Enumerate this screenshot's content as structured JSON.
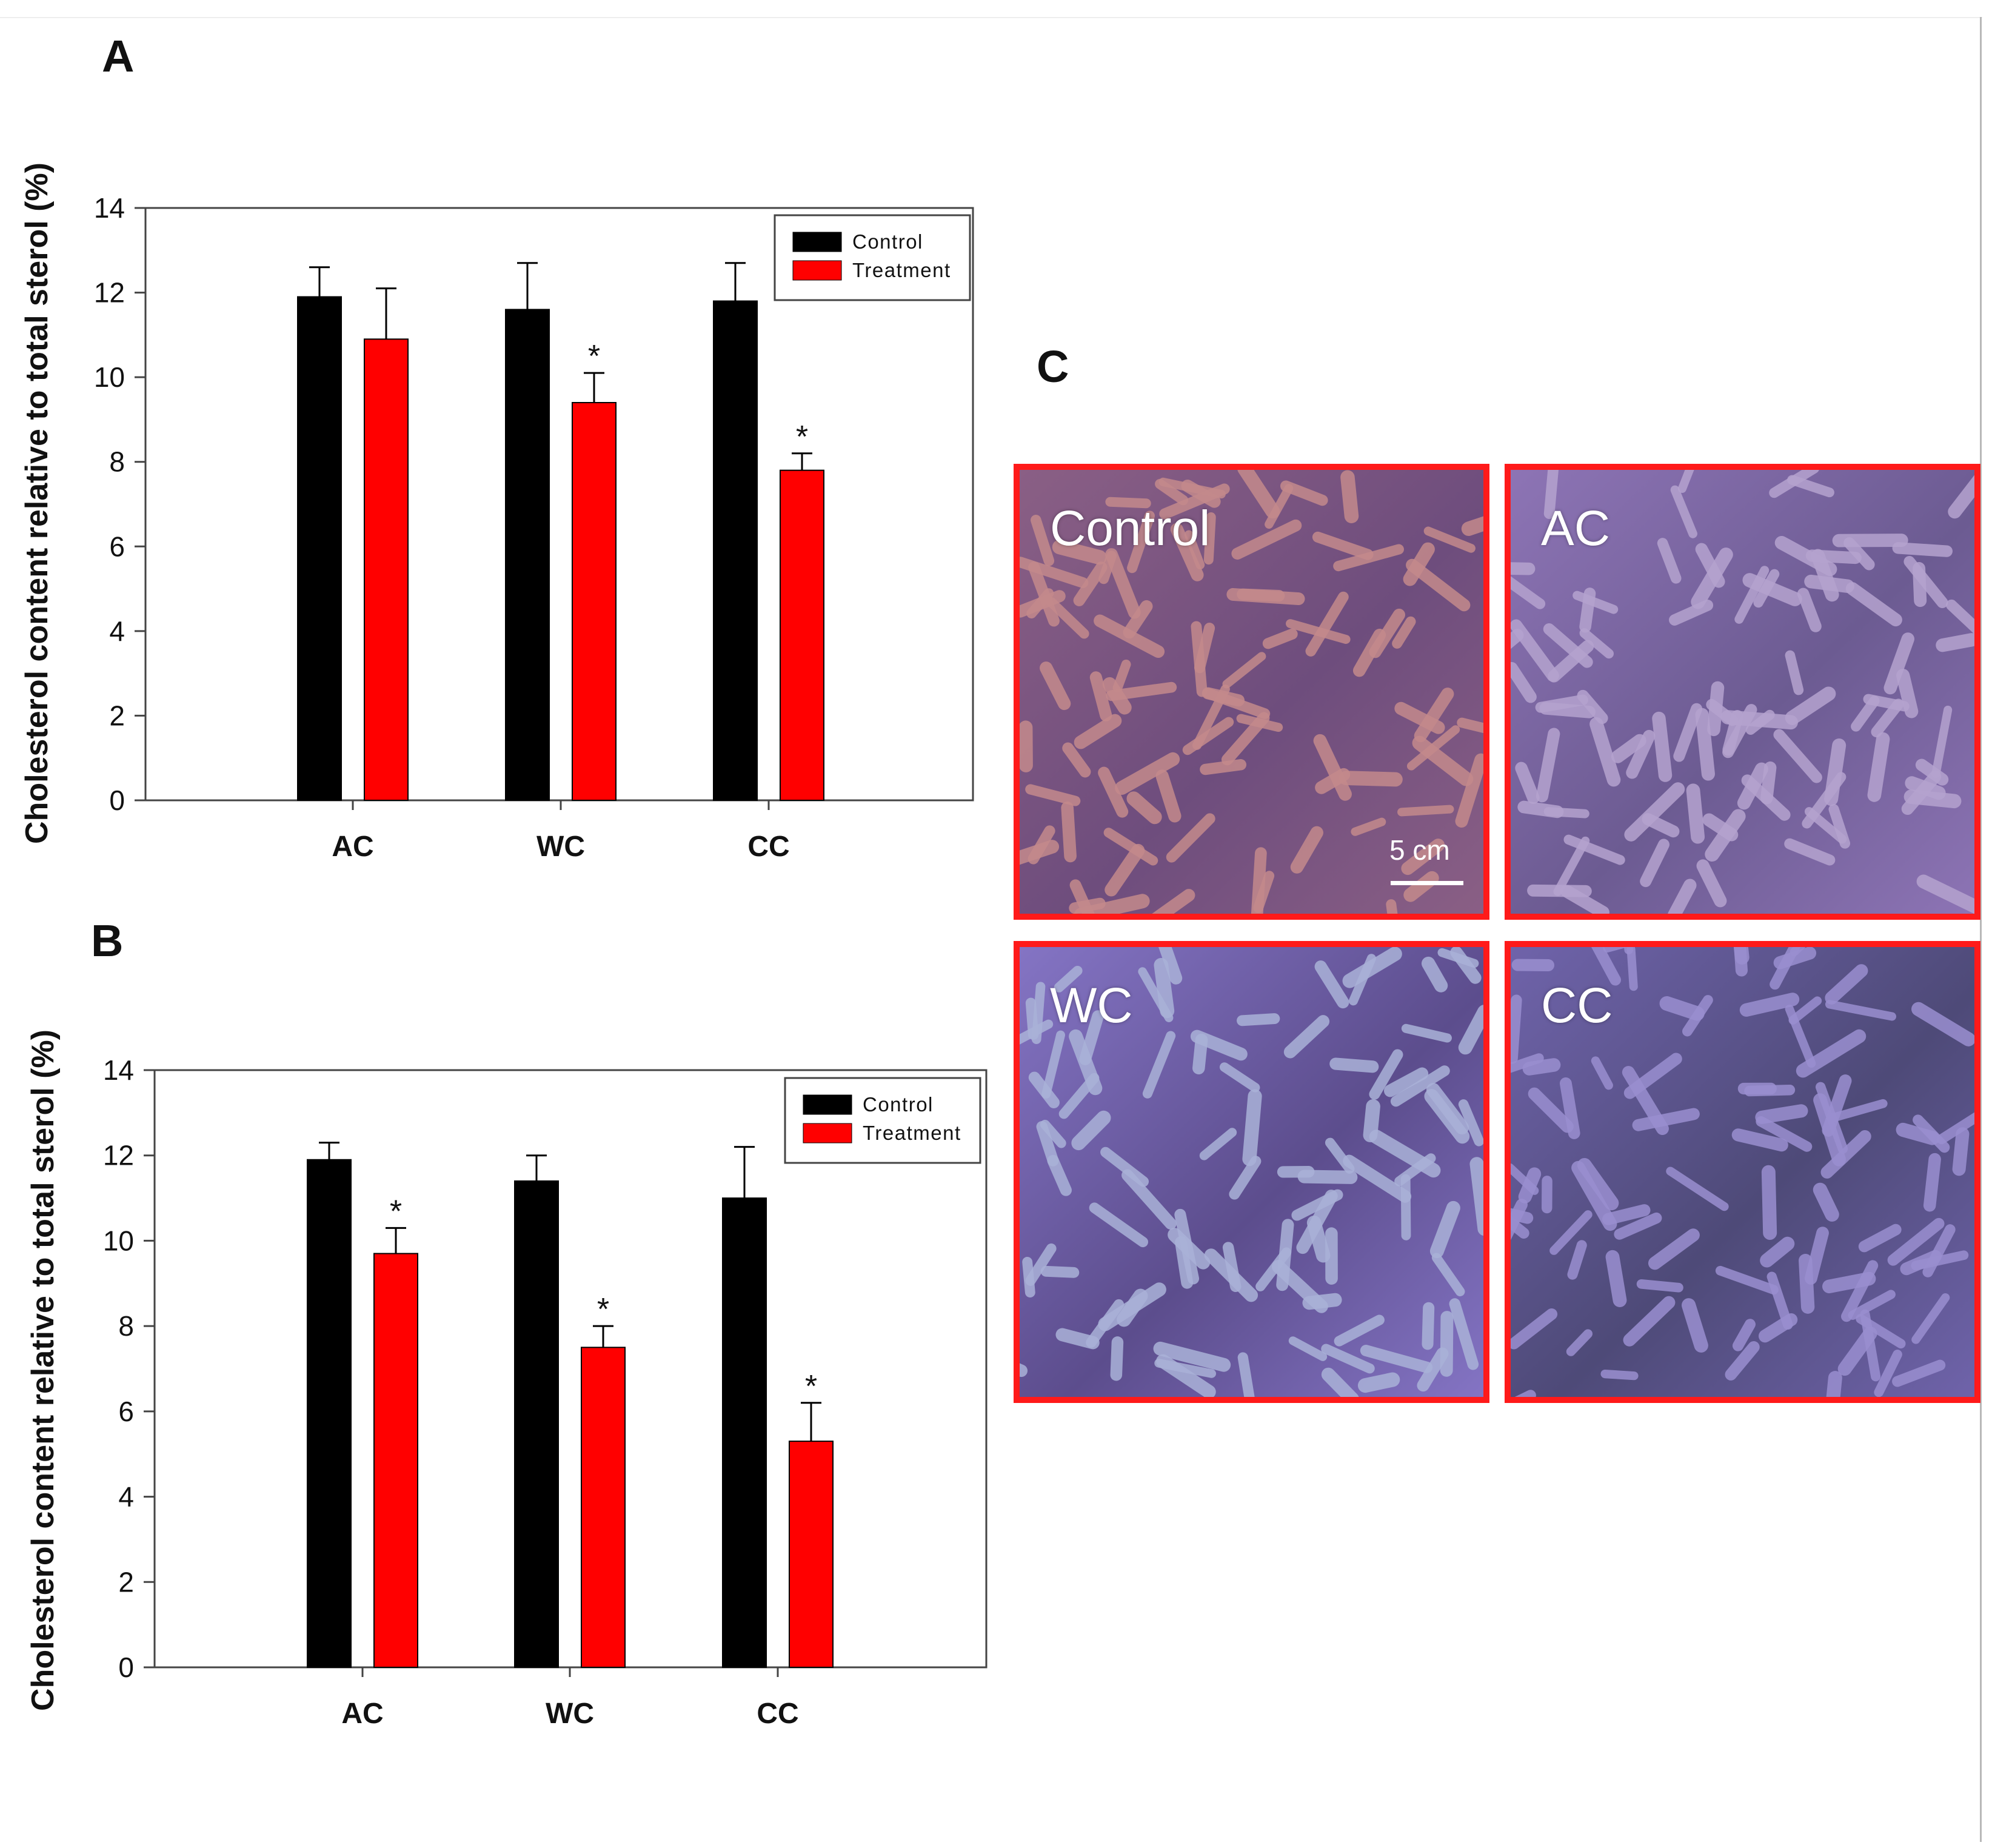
{
  "panels": {
    "a": "A",
    "b": "B",
    "c": "C"
  },
  "chart_data": [
    {
      "type": "bar",
      "panel": "A",
      "categories": [
        "AC",
        "WC",
        "CC"
      ],
      "ylabel": "Cholesterol content relative to total sterol (%)",
      "ylim": [
        0,
        14
      ],
      "yticks": [
        0,
        2,
        4,
        6,
        8,
        10,
        12,
        14
      ],
      "legend_position": "top-right",
      "series": [
        {
          "name": "Control",
          "color": "#000000",
          "values": [
            11.9,
            11.6,
            11.8
          ],
          "errors": [
            0.7,
            1.1,
            0.9
          ]
        },
        {
          "name": "Treatment",
          "color": "#ff0000",
          "values": [
            10.9,
            9.4,
            7.8
          ],
          "errors": [
            1.2,
            0.7,
            0.4
          ]
        }
      ],
      "significance": [
        {
          "series": 1,
          "category": 1,
          "mark": "*"
        },
        {
          "series": 1,
          "category": 2,
          "mark": "*"
        }
      ]
    },
    {
      "type": "bar",
      "panel": "B",
      "categories": [
        "AC",
        "WC",
        "CC"
      ],
      "ylabel": "Cholesterol content relative to total sterol (%)",
      "ylim": [
        0,
        14
      ],
      "yticks": [
        0,
        2,
        4,
        6,
        8,
        10,
        12,
        14
      ],
      "legend_position": "top-right",
      "series": [
        {
          "name": "Control",
          "color": "#000000",
          "values": [
            11.9,
            11.4,
            11.0
          ],
          "errors": [
            0.4,
            0.6,
            1.2
          ]
        },
        {
          "name": "Treatment",
          "color": "#ff0000",
          "values": [
            9.7,
            7.5,
            5.3
          ],
          "errors": [
            0.6,
            0.5,
            0.9
          ]
        }
      ],
      "significance": [
        {
          "series": 1,
          "category": 0,
          "mark": "*"
        },
        {
          "series": 1,
          "category": 1,
          "mark": "*"
        },
        {
          "series": 1,
          "category": 2,
          "mark": "*"
        }
      ]
    }
  ],
  "photos": [
    {
      "label": "Control",
      "colors": [
        "#8a5f85",
        "#c48a8c",
        "#6e4d7d"
      ],
      "scale_label": "5 cm"
    },
    {
      "label": "AC",
      "colors": [
        "#8d74b5",
        "#b5a3cf",
        "#6c5b92"
      ]
    },
    {
      "label": "WC",
      "colors": [
        "#8474c4",
        "#aab2d8",
        "#5c4d8d"
      ]
    },
    {
      "label": "CC",
      "colors": [
        "#6f63aa",
        "#9a8fd0",
        "#4e4a78"
      ]
    }
  ]
}
